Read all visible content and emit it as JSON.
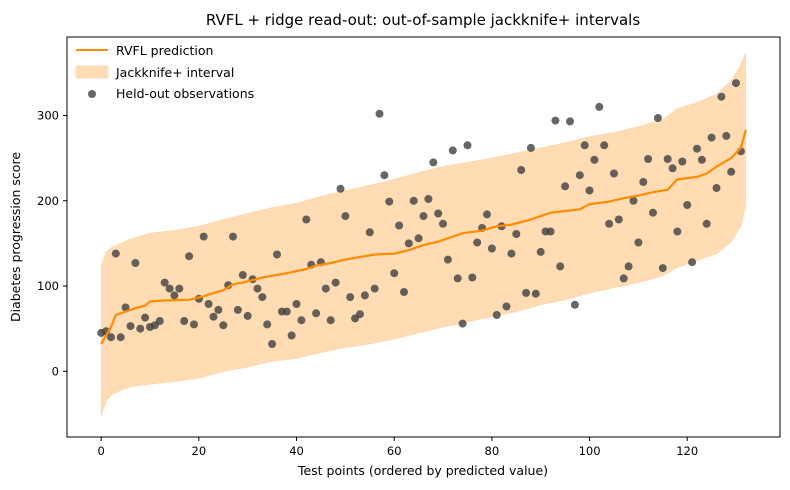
{
  "chart_data": {
    "type": "line",
    "title": "RVFL + ridge read-out: out-of-sample jackknife+ intervals",
    "xlabel": "Test points (ordered by predicted value)",
    "ylabel": "Diabetes progression score",
    "xlim": [
      -7,
      139
    ],
    "ylim": [
      -77,
      392
    ],
    "xticks": [
      0,
      20,
      40,
      60,
      80,
      100,
      120
    ],
    "yticks": [
      0,
      100,
      200,
      300
    ],
    "grid": false,
    "legend_position": "top-left",
    "legend": {
      "line": "RVFL prediction",
      "band": "Jackknife+ interval",
      "points": "Held-out observations"
    },
    "colors": {
      "line": "#ff8c00",
      "band": "#ffdcb4",
      "points": "#404040"
    },
    "prediction_knots": [
      [
        0,
        32
      ],
      [
        2,
        52
      ],
      [
        3,
        66
      ],
      [
        5,
        70
      ],
      [
        7,
        74
      ],
      [
        9,
        77
      ],
      [
        10,
        82
      ],
      [
        13,
        83
      ],
      [
        18,
        84
      ],
      [
        21,
        88
      ],
      [
        22,
        90
      ],
      [
        25,
        95
      ],
      [
        27,
        102
      ],
      [
        29,
        104
      ],
      [
        31,
        107
      ],
      [
        33,
        110
      ],
      [
        35,
        112
      ],
      [
        38,
        115
      ],
      [
        42,
        120
      ],
      [
        44,
        124
      ],
      [
        47,
        127
      ],
      [
        50,
        131
      ],
      [
        53,
        134
      ],
      [
        56,
        137
      ],
      [
        60,
        138
      ],
      [
        63,
        142
      ],
      [
        66,
        148
      ],
      [
        69,
        152
      ],
      [
        72,
        158
      ],
      [
        74,
        162
      ],
      [
        78,
        165
      ],
      [
        81,
        170
      ],
      [
        84,
        172
      ],
      [
        88,
        178
      ],
      [
        90,
        182
      ],
      [
        92,
        186
      ],
      [
        95,
        188
      ],
      [
        98,
        190
      ],
      [
        100,
        196
      ],
      [
        104,
        199
      ],
      [
        107,
        203
      ],
      [
        110,
        206
      ],
      [
        113,
        210
      ],
      [
        116,
        213
      ],
      [
        118,
        225
      ],
      [
        122,
        228
      ],
      [
        124,
        232
      ],
      [
        126,
        240
      ],
      [
        129,
        250
      ],
      [
        131,
        262
      ],
      [
        132,
        283
      ]
    ],
    "interval_knots": [
      [
        0,
        -52,
        123
      ],
      [
        1,
        -35,
        140
      ],
      [
        2,
        -28,
        145
      ],
      [
        4,
        -22,
        150
      ],
      [
        6,
        -18,
        155
      ],
      [
        10,
        -15,
        162
      ],
      [
        15,
        -12,
        165
      ],
      [
        20,
        -8,
        170
      ],
      [
        25,
        0,
        178
      ],
      [
        30,
        5,
        185
      ],
      [
        35,
        12,
        192
      ],
      [
        40,
        15,
        197
      ],
      [
        45,
        22,
        205
      ],
      [
        50,
        28,
        212
      ],
      [
        55,
        32,
        218
      ],
      [
        60,
        38,
        225
      ],
      [
        65,
        45,
        233
      ],
      [
        70,
        52,
        240
      ],
      [
        75,
        58,
        245
      ],
      [
        80,
        64,
        250
      ],
      [
        85,
        70,
        256
      ],
      [
        90,
        78,
        262
      ],
      [
        95,
        84,
        268
      ],
      [
        100,
        92,
        275
      ],
      [
        105,
        98,
        280
      ],
      [
        110,
        104,
        287
      ],
      [
        115,
        112,
        295
      ],
      [
        118,
        122,
        308
      ],
      [
        122,
        130,
        315
      ],
      [
        126,
        138,
        325
      ],
      [
        129,
        152,
        340
      ],
      [
        131,
        170,
        360
      ],
      [
        132,
        195,
        373
      ]
    ],
    "observations": [
      [
        0,
        45
      ],
      [
        1,
        47
      ],
      [
        2,
        40
      ],
      [
        3,
        138
      ],
      [
        4,
        40
      ],
      [
        5,
        75
      ],
      [
        6,
        53
      ],
      [
        7,
        127
      ],
      [
        8,
        50
      ],
      [
        9,
        63
      ],
      [
        10,
        52
      ],
      [
        11,
        54
      ],
      [
        12,
        59
      ],
      [
        13,
        104
      ],
      [
        14,
        97
      ],
      [
        15,
        89
      ],
      [
        16,
        97
      ],
      [
        17,
        59
      ],
      [
        18,
        135
      ],
      [
        19,
        55
      ],
      [
        20,
        85
      ],
      [
        21,
        158
      ],
      [
        22,
        79
      ],
      [
        23,
        64
      ],
      [
        24,
        72
      ],
      [
        25,
        54
      ],
      [
        26,
        101
      ],
      [
        27,
        158
      ],
      [
        28,
        72
      ],
      [
        29,
        113
      ],
      [
        30,
        65
      ],
      [
        31,
        108
      ],
      [
        32,
        97
      ],
      [
        33,
        87
      ],
      [
        34,
        55
      ],
      [
        35,
        32
      ],
      [
        36,
        137
      ],
      [
        37,
        70
      ],
      [
        38,
        70
      ],
      [
        39,
        42
      ],
      [
        40,
        79
      ],
      [
        41,
        60
      ],
      [
        42,
        178
      ],
      [
        43,
        125
      ],
      [
        44,
        68
      ],
      [
        45,
        128
      ],
      [
        46,
        97
      ],
      [
        47,
        60
      ],
      [
        48,
        104
      ],
      [
        49,
        214
      ],
      [
        50,
        182
      ],
      [
        51,
        87
      ],
      [
        52,
        62
      ],
      [
        53,
        67
      ],
      [
        54,
        89
      ],
      [
        55,
        163
      ],
      [
        56,
        97
      ],
      [
        57,
        302
      ],
      [
        58,
        230
      ],
      [
        59,
        199
      ],
      [
        60,
        115
      ],
      [
        61,
        171
      ],
      [
        62,
        93
      ],
      [
        63,
        150
      ],
      [
        64,
        200
      ],
      [
        65,
        156
      ],
      [
        66,
        182
      ],
      [
        67,
        202
      ],
      [
        68,
        245
      ],
      [
        69,
        185
      ],
      [
        70,
        173
      ],
      [
        71,
        131
      ],
      [
        72,
        259
      ],
      [
        73,
        109
      ],
      [
        74,
        56
      ],
      [
        75,
        265
      ],
      [
        76,
        110
      ],
      [
        77,
        151
      ],
      [
        78,
        168
      ],
      [
        79,
        184
      ],
      [
        80,
        144
      ],
      [
        81,
        66
      ],
      [
        82,
        170
      ],
      [
        83,
        76
      ],
      [
        84,
        138
      ],
      [
        85,
        161
      ],
      [
        86,
        236
      ],
      [
        87,
        92
      ],
      [
        88,
        262
      ],
      [
        89,
        91
      ],
      [
        90,
        140
      ],
      [
        91,
        164
      ],
      [
        92,
        164
      ],
      [
        93,
        294
      ],
      [
        94,
        123
      ],
      [
        95,
        217
      ],
      [
        96,
        293
      ],
      [
        97,
        78
      ],
      [
        98,
        230
      ],
      [
        99,
        265
      ],
      [
        100,
        212
      ],
      [
        101,
        248
      ],
      [
        102,
        310
      ],
      [
        103,
        265
      ],
      [
        104,
        173
      ],
      [
        105,
        232
      ],
      [
        106,
        178
      ],
      [
        107,
        109
      ],
      [
        108,
        123
      ],
      [
        109,
        200
      ],
      [
        110,
        151
      ],
      [
        111,
        222
      ],
      [
        112,
        249
      ],
      [
        113,
        186
      ],
      [
        114,
        297
      ],
      [
        115,
        121
      ],
      [
        116,
        249
      ],
      [
        117,
        238
      ],
      [
        118,
        164
      ],
      [
        119,
        246
      ],
      [
        120,
        195
      ],
      [
        121,
        128
      ],
      [
        122,
        261
      ],
      [
        123,
        248
      ],
      [
        124,
        173
      ],
      [
        125,
        274
      ],
      [
        126,
        215
      ],
      [
        127,
        322
      ],
      [
        128,
        276
      ],
      [
        129,
        234
      ],
      [
        130,
        338
      ],
      [
        131,
        258
      ]
    ]
  }
}
